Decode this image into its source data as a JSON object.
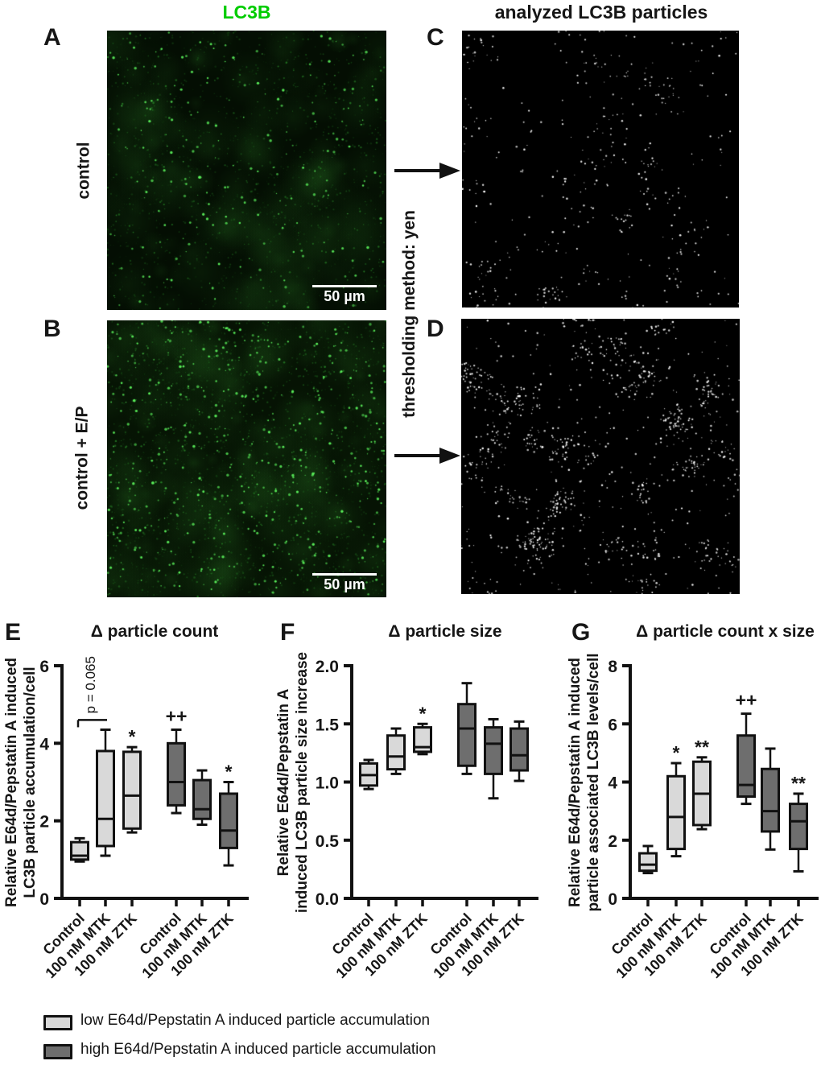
{
  "figure": {
    "col_title_left": "LC3B",
    "col_title_left_color": "#00cc00",
    "col_title_right": "analyzed LC3B particles"
  },
  "panels": {
    "a": {
      "letter": "A",
      "side_label": "control",
      "scalebar": "50 µm"
    },
    "b": {
      "letter": "B",
      "side_label": "control + E/P",
      "scalebar": "50 µm"
    },
    "c": {
      "letter": "C"
    },
    "d": {
      "letter": "D"
    },
    "threshold_label": "thresholding method: yen"
  },
  "chart_data": [
    {
      "type": "box",
      "panel": "E",
      "title": "Δ particle count",
      "ylabel_lines": [
        "Relative E64d/Pepstatin A induced",
        "LC3B particle accumulation/cell"
      ],
      "ylim": [
        0,
        6
      ],
      "yticks": [
        "0",
        "2",
        "4",
        "6"
      ],
      "categories": [
        "Control",
        "100 nM MTK",
        "100 nM ZTK",
        "Control",
        "100 nM MTK",
        "100 nM ZTK"
      ],
      "groups": [
        "low",
        "low",
        "low",
        "high",
        "high",
        "high"
      ],
      "boxes": [
        {
          "whislo": 0.95,
          "q1": 1.0,
          "med": 1.1,
          "q3": 1.45,
          "whishi": 1.55
        },
        {
          "whislo": 1.1,
          "q1": 1.35,
          "med": 2.05,
          "q3": 3.8,
          "whishi": 4.35
        },
        {
          "whislo": 1.7,
          "q1": 1.8,
          "med": 2.65,
          "q3": 3.78,
          "whishi": 3.9
        },
        {
          "whislo": 2.2,
          "q1": 2.4,
          "med": 3.0,
          "q3": 4.0,
          "whishi": 4.35
        },
        {
          "whislo": 1.9,
          "q1": 2.05,
          "med": 2.3,
          "q3": 3.05,
          "whishi": 3.3
        },
        {
          "whislo": 0.85,
          "q1": 1.3,
          "med": 1.75,
          "q3": 2.7,
          "whishi": 3.0
        }
      ],
      "annotations": [
        {
          "box": 2,
          "text": "*"
        },
        {
          "box": 3,
          "text": "++"
        },
        {
          "box": 5,
          "text": "*"
        }
      ],
      "bracket": {
        "from": 0,
        "to": 1,
        "value": 4.6,
        "label": "p = 0.065"
      }
    },
    {
      "type": "box",
      "panel": "F",
      "title": "Δ particle size",
      "ylabel_lines": [
        "Relative E64d/Pepstatin A",
        "induced LC3B particle size increase"
      ],
      "ylim": [
        0,
        2
      ],
      "yticks": [
        "0.0",
        "0.5",
        "1.0",
        "1.5",
        "2.0"
      ],
      "categories": [
        "Control",
        "100 nM MTK",
        "100 nM ZTK",
        "Control",
        "100 nM MTK",
        "100 nM ZTK"
      ],
      "groups": [
        "low",
        "low",
        "low",
        "high",
        "high",
        "high"
      ],
      "boxes": [
        {
          "whislo": 0.94,
          "q1": 0.97,
          "med": 1.06,
          "q3": 1.16,
          "whishi": 1.19
        },
        {
          "whislo": 1.07,
          "q1": 1.11,
          "med": 1.22,
          "q3": 1.4,
          "whishi": 1.46
        },
        {
          "whislo": 1.24,
          "q1": 1.26,
          "med": 1.3,
          "q3": 1.47,
          "whishi": 1.5
        },
        {
          "whislo": 1.07,
          "q1": 1.14,
          "med": 1.46,
          "q3": 1.67,
          "whishi": 1.85
        },
        {
          "whislo": 0.86,
          "q1": 1.07,
          "med": 1.33,
          "q3": 1.47,
          "whishi": 1.54
        },
        {
          "whislo": 1.01,
          "q1": 1.1,
          "med": 1.23,
          "q3": 1.46,
          "whishi": 1.52
        }
      ],
      "annotations": [
        {
          "box": 2,
          "text": "*"
        }
      ]
    },
    {
      "type": "box",
      "panel": "G",
      "title": "Δ particle count x size",
      "ylabel_lines": [
        "Relative E64d/Pepstatin A induced",
        "particle associated LC3B levels/cell"
      ],
      "ylim": [
        0,
        8
      ],
      "yticks": [
        "0",
        "2",
        "4",
        "6",
        "8"
      ],
      "categories": [
        "Control",
        "100 nM MTK",
        "100 nM ZTK",
        "Control",
        "100 nM MTK",
        "100 nM ZTK"
      ],
      "groups": [
        "low",
        "low",
        "low",
        "high",
        "high",
        "high"
      ],
      "boxes": [
        {
          "whislo": 0.87,
          "q1": 0.95,
          "med": 1.16,
          "q3": 1.55,
          "whishi": 1.8
        },
        {
          "whislo": 1.45,
          "q1": 1.7,
          "med": 2.8,
          "q3": 4.2,
          "whishi": 4.65
        },
        {
          "whislo": 2.38,
          "q1": 2.52,
          "med": 3.6,
          "q3": 4.7,
          "whishi": 4.85
        },
        {
          "whislo": 3.25,
          "q1": 3.5,
          "med": 3.9,
          "q3": 5.6,
          "whishi": 6.35
        },
        {
          "whislo": 1.68,
          "q1": 2.3,
          "med": 3.0,
          "q3": 4.45,
          "whishi": 5.15
        },
        {
          "whislo": 0.93,
          "q1": 1.7,
          "med": 2.65,
          "q3": 3.25,
          "whishi": 3.6
        }
      ],
      "annotations": [
        {
          "box": 1,
          "text": "*"
        },
        {
          "box": 2,
          "text": "**"
        },
        {
          "box": 3,
          "text": "++"
        },
        {
          "box": 5,
          "text": "**"
        }
      ]
    }
  ],
  "legend": {
    "items": [
      {
        "label": "low E64d/Pepstatin A induced particle accumulation",
        "color": "#d9d9d9"
      },
      {
        "label": "high E64d/Pepstatin A induced particle accumulation",
        "color": "#6e6e6e"
      }
    ]
  },
  "colors": {
    "box_outline": "#111111",
    "axis": "#161616"
  },
  "micrographs": {
    "a": {
      "kind": "fluorescence",
      "background": "#040e03",
      "haze": 150,
      "speckles": 1300,
      "bright": 230,
      "seed": 7
    },
    "b": {
      "kind": "fluorescence",
      "background": "#061304",
      "haze": 210,
      "speckles": 1800,
      "bright": 560,
      "seed": 11
    },
    "c": {
      "kind": "threshold",
      "background": "#000000",
      "clusters": 55,
      "cluster_size": 4,
      "singles": 130,
      "seed": 23
    },
    "d": {
      "kind": "threshold",
      "background": "#000000",
      "clusters": 62,
      "cluster_size": 11,
      "singles": 330,
      "seed": 31
    }
  }
}
